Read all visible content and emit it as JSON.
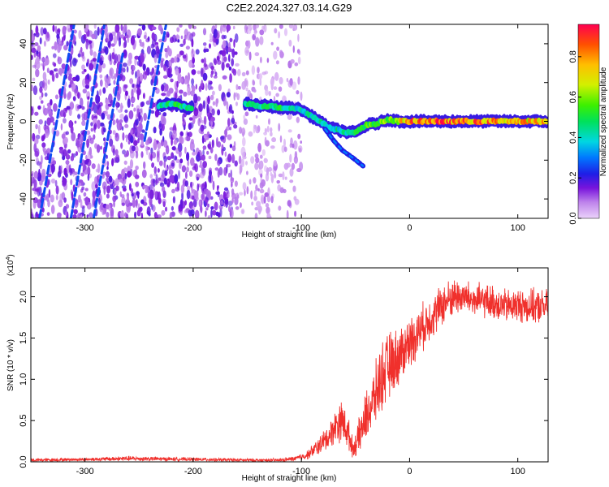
{
  "figure": {
    "title": "C2E2.2024.327.03.14.G29"
  },
  "chart_data": [
    {
      "type": "heatmap",
      "name": "spectrogram",
      "xlabel": "Height of straight line (km)",
      "ylabel": "Frequency (Hz)",
      "xlim": [
        -350,
        128
      ],
      "ylim": [
        -50,
        50
      ],
      "xticks": [
        -300,
        -200,
        -100,
        0,
        100
      ],
      "xtick_labels": [
        "-300",
        "-200",
        "-100",
        "0",
        "100"
      ],
      "yticks": [
        -40,
        -20,
        0,
        20,
        40
      ],
      "ytick_labels": [
        "-40",
        "-20",
        "0",
        "20",
        "40"
      ],
      "ridge": [
        {
          "x": -230,
          "y": 8,
          "amp": 0.45
        },
        {
          "x": -222,
          "y": 9,
          "amp": 0.5
        },
        {
          "x": -212,
          "y": 8,
          "amp": 0.5
        },
        {
          "x": -205,
          "y": 7,
          "amp": 0.45
        },
        {
          "x": -150,
          "y": 9,
          "amp": 0.45
        },
        {
          "x": -140,
          "y": 8,
          "amp": 0.5
        },
        {
          "x": -130,
          "y": 8,
          "amp": 0.5
        },
        {
          "x": -120,
          "y": 7,
          "amp": 0.5
        },
        {
          "x": -110,
          "y": 7,
          "amp": 0.45
        },
        {
          "x": -100,
          "y": 6,
          "amp": 0.45
        },
        {
          "x": -92,
          "y": 3,
          "amp": 0.45
        },
        {
          "x": -85,
          "y": 1,
          "amp": 0.45
        },
        {
          "x": -78,
          "y": -2,
          "amp": 0.45
        },
        {
          "x": -70,
          "y": -4,
          "amp": 0.45
        },
        {
          "x": -62,
          "y": -5,
          "amp": 0.45
        },
        {
          "x": -55,
          "y": -6,
          "amp": 0.45
        },
        {
          "x": -48,
          "y": -5,
          "amp": 0.5
        },
        {
          "x": -40,
          "y": -2,
          "amp": 0.55
        },
        {
          "x": -30,
          "y": -1,
          "amp": 0.6
        },
        {
          "x": -20,
          "y": 1,
          "amp": 0.6
        },
        {
          "x": -10,
          "y": 0,
          "amp": 0.7
        },
        {
          "x": 0,
          "y": 0,
          "amp": 0.85
        },
        {
          "x": 10,
          "y": 0,
          "amp": 0.9
        },
        {
          "x": 20,
          "y": 0,
          "amp": 0.9
        },
        {
          "x": 30,
          "y": 0,
          "amp": 0.88
        },
        {
          "x": 40,
          "y": 0,
          "amp": 0.88
        },
        {
          "x": 50,
          "y": 0,
          "amp": 0.85
        },
        {
          "x": 60,
          "y": 0,
          "amp": 0.85
        },
        {
          "x": 70,
          "y": 0,
          "amp": 0.85
        },
        {
          "x": 80,
          "y": 0,
          "amp": 0.82
        },
        {
          "x": 90,
          "y": 0,
          "amp": 0.82
        },
        {
          "x": 100,
          "y": 0,
          "amp": 0.8
        },
        {
          "x": 110,
          "y": 0,
          "amp": 0.8
        },
        {
          "x": 120,
          "y": 0,
          "amp": 0.78
        },
        {
          "x": 128,
          "y": 0,
          "amp": 0.78
        }
      ],
      "branch": [
        {
          "x": -78,
          "y": -4
        },
        {
          "x": -70,
          "y": -10
        },
        {
          "x": -62,
          "y": -15
        },
        {
          "x": -52,
          "y": -19
        },
        {
          "x": -43,
          "y": -23
        }
      ],
      "streaks": [
        {
          "x0": -342,
          "y0": -50,
          "x1": -310,
          "y1": 50
        },
        {
          "x0": -313,
          "y0": -50,
          "x1": -282,
          "y1": 50
        },
        {
          "x0": -292,
          "y0": -50,
          "x1": -265,
          "y1": 35
        },
        {
          "x0": -245,
          "y0": -10,
          "x1": -225,
          "y1": 50
        }
      ],
      "colorbar": {
        "label": "Normalized spectral amplitude",
        "range": [
          0,
          0.96
        ],
        "ticks": [
          0.0,
          0.2,
          0.4,
          0.6,
          0.8
        ],
        "tick_labels": [
          "0.0",
          "0.2",
          "0.4",
          "0.6",
          "0.8"
        ]
      }
    },
    {
      "type": "line",
      "name": "snr",
      "xlabel": "Height of straight line (km)",
      "ylabel": "SNR (10 * v/v)",
      "exponent_label": "(x10",
      "exponent_power": "4",
      "exponent_close": ")",
      "color": "#f0302c",
      "xlim": [
        -350,
        128
      ],
      "ylim": [
        0,
        2.35
      ],
      "xticks": [
        -300,
        -200,
        -100,
        0,
        100
      ],
      "xtick_labels": [
        "-300",
        "-200",
        "-100",
        "0",
        "100"
      ],
      "yticks": [
        0.0,
        0.5,
        1.0,
        1.5,
        2.0
      ],
      "ytick_labels": [
        "0.0",
        "0.5",
        "1.0",
        "1.5",
        "2.0"
      ],
      "envelope": [
        {
          "x": -350,
          "y": 0.02,
          "spread": 0.02
        },
        {
          "x": -300,
          "y": 0.03,
          "spread": 0.02
        },
        {
          "x": -260,
          "y": 0.04,
          "spread": 0.03
        },
        {
          "x": -200,
          "y": 0.03,
          "spread": 0.02
        },
        {
          "x": -150,
          "y": 0.02,
          "spread": 0.02
        },
        {
          "x": -120,
          "y": 0.02,
          "spread": 0.02
        },
        {
          "x": -105,
          "y": 0.04,
          "spread": 0.03
        },
        {
          "x": -95,
          "y": 0.08,
          "spread": 0.05
        },
        {
          "x": -85,
          "y": 0.18,
          "spread": 0.1
        },
        {
          "x": -75,
          "y": 0.3,
          "spread": 0.15
        },
        {
          "x": -68,
          "y": 0.45,
          "spread": 0.2
        },
        {
          "x": -62,
          "y": 0.5,
          "spread": 0.25
        },
        {
          "x": -57,
          "y": 0.35,
          "spread": 0.2
        },
        {
          "x": -52,
          "y": 0.15,
          "spread": 0.1
        },
        {
          "x": -47,
          "y": 0.3,
          "spread": 0.2
        },
        {
          "x": -40,
          "y": 0.55,
          "spread": 0.3
        },
        {
          "x": -33,
          "y": 0.75,
          "spread": 0.35
        },
        {
          "x": -27,
          "y": 1.0,
          "spread": 0.4
        },
        {
          "x": -20,
          "y": 1.15,
          "spread": 0.4
        },
        {
          "x": -12,
          "y": 1.25,
          "spread": 0.35
        },
        {
          "x": 0,
          "y": 1.45,
          "spread": 0.3
        },
        {
          "x": 10,
          "y": 1.6,
          "spread": 0.28
        },
        {
          "x": 20,
          "y": 1.75,
          "spread": 0.25
        },
        {
          "x": 30,
          "y": 1.9,
          "spread": 0.25
        },
        {
          "x": 40,
          "y": 2.0,
          "spread": 0.22
        },
        {
          "x": 50,
          "y": 2.0,
          "spread": 0.2
        },
        {
          "x": 60,
          "y": 1.95,
          "spread": 0.2
        },
        {
          "x": 70,
          "y": 1.95,
          "spread": 0.2
        },
        {
          "x": 80,
          "y": 1.92,
          "spread": 0.2
        },
        {
          "x": 90,
          "y": 1.88,
          "spread": 0.2
        },
        {
          "x": 100,
          "y": 1.9,
          "spread": 0.2
        },
        {
          "x": 110,
          "y": 1.88,
          "spread": 0.2
        },
        {
          "x": 120,
          "y": 1.88,
          "spread": 0.2
        },
        {
          "x": 128,
          "y": 1.88,
          "spread": 0.2
        }
      ]
    }
  ]
}
